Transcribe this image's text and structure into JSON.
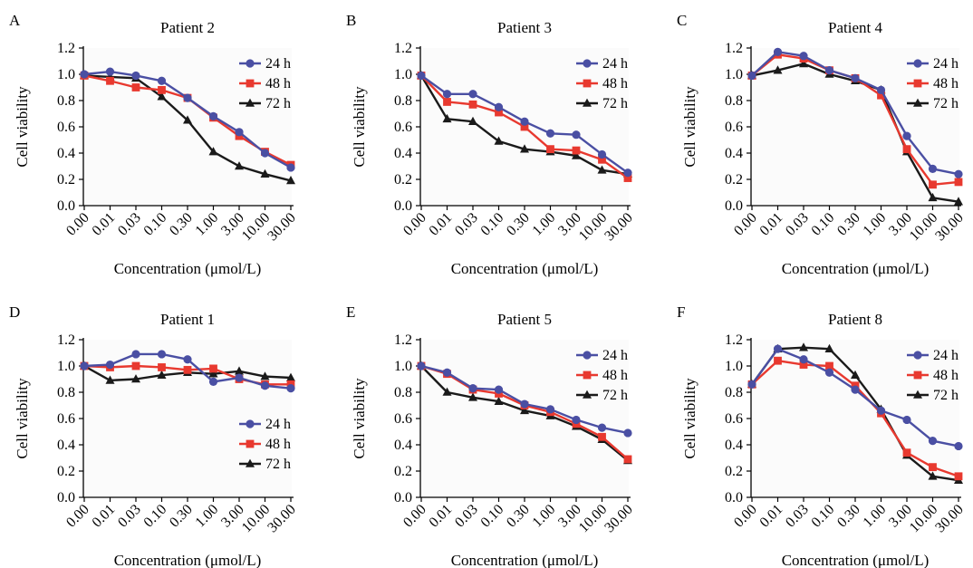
{
  "figure": {
    "panels": [
      "A",
      "B",
      "C",
      "D",
      "E",
      "F"
    ]
  },
  "chart_data": [
    {
      "panel": "A",
      "type": "line",
      "title": "Patient 2",
      "xlabel": "Concentration (μmol/L)",
      "ylabel": "Cell viability",
      "categories": [
        "0.00",
        "0.01",
        "0.03",
        "0.10",
        "0.30",
        "1.00",
        "3.00",
        "10.00",
        "30.00"
      ],
      "ylim": [
        0,
        1.2
      ],
      "yticks": [
        "0.0",
        "0.2",
        "0.4",
        "0.6",
        "0.8",
        "1.0",
        "1.2"
      ],
      "legend_position": "top-right",
      "series": [
        {
          "name": "24 h",
          "color": "#4a4fa3",
          "marker": "circle",
          "values": [
            1.0,
            1.02,
            0.99,
            0.95,
            0.82,
            0.68,
            0.56,
            0.4,
            0.29
          ]
        },
        {
          "name": "48 h",
          "color": "#e8392f",
          "marker": "square",
          "values": [
            0.99,
            0.95,
            0.9,
            0.88,
            0.82,
            0.67,
            0.53,
            0.41,
            0.31
          ]
        },
        {
          "name": "72 h",
          "color": "#1a1a1a",
          "marker": "triangle",
          "values": [
            0.99,
            0.98,
            0.97,
            0.83,
            0.65,
            0.41,
            0.3,
            0.24,
            0.19
          ]
        }
      ]
    },
    {
      "panel": "B",
      "type": "line",
      "title": "Patient 3",
      "xlabel": "Concentration (μmol/L)",
      "ylabel": "Cell viability",
      "categories": [
        "0.00",
        "0.01",
        "0.03",
        "0.10",
        "0.30",
        "1.00",
        "3.00",
        "10.00",
        "30.00"
      ],
      "ylim": [
        0,
        1.2
      ],
      "yticks": [
        "0.0",
        "0.2",
        "0.4",
        "0.6",
        "0.8",
        "1.0",
        "1.2"
      ],
      "legend_position": "top-right",
      "series": [
        {
          "name": "24 h",
          "color": "#4a4fa3",
          "marker": "circle",
          "values": [
            0.99,
            0.85,
            0.85,
            0.75,
            0.64,
            0.55,
            0.54,
            0.39,
            0.25
          ]
        },
        {
          "name": "48 h",
          "color": "#e8392f",
          "marker": "square",
          "values": [
            0.99,
            0.79,
            0.77,
            0.71,
            0.6,
            0.43,
            0.42,
            0.35,
            0.21
          ]
        },
        {
          "name": "72 h",
          "color": "#1a1a1a",
          "marker": "triangle",
          "values": [
            0.99,
            0.66,
            0.64,
            0.49,
            0.43,
            0.41,
            0.38,
            0.27,
            0.24
          ]
        }
      ]
    },
    {
      "panel": "C",
      "type": "line",
      "title": "Patient 4",
      "xlabel": "Concentration (μmol/L)",
      "ylabel": "Cell viability",
      "categories": [
        "0.00",
        "0.01",
        "0.03",
        "0.10",
        "0.30",
        "1.00",
        "3.00",
        "10.00",
        "30.00"
      ],
      "ylim": [
        0,
        1.2
      ],
      "yticks": [
        "0.0",
        "0.2",
        "0.4",
        "0.6",
        "0.8",
        "1.0",
        "1.2"
      ],
      "legend_position": "top-right",
      "series": [
        {
          "name": "24 h",
          "color": "#4a4fa3",
          "marker": "circle",
          "values": [
            0.99,
            1.17,
            1.14,
            1.03,
            0.97,
            0.88,
            0.53,
            0.28,
            0.24
          ]
        },
        {
          "name": "48 h",
          "color": "#e8392f",
          "marker": "square",
          "values": [
            0.99,
            1.15,
            1.12,
            1.03,
            0.97,
            0.84,
            0.43,
            0.16,
            0.18
          ]
        },
        {
          "name": "72 h",
          "color": "#1a1a1a",
          "marker": "triangle",
          "values": [
            0.99,
            1.03,
            1.08,
            1.0,
            0.95,
            0.88,
            0.41,
            0.06,
            0.03
          ]
        }
      ]
    },
    {
      "panel": "D",
      "type": "line",
      "title": "Patient 1",
      "xlabel": "Concentration (μmol/L)",
      "ylabel": "Cell viability",
      "categories": [
        "0.00",
        "0.01",
        "0.03",
        "0.10",
        "0.30",
        "1.00",
        "3.00",
        "10.00",
        "30.00"
      ],
      "ylim": [
        0,
        1.2
      ],
      "yticks": [
        "0.0",
        "0.2",
        "0.4",
        "0.6",
        "0.8",
        "1.0",
        "1.2"
      ],
      "legend_position": "bottom-right",
      "series": [
        {
          "name": "24 h",
          "color": "#4a4fa3",
          "marker": "circle",
          "values": [
            1.0,
            1.01,
            1.09,
            1.09,
            1.05,
            0.88,
            0.91,
            0.85,
            0.83
          ]
        },
        {
          "name": "48 h",
          "color": "#e8392f",
          "marker": "square",
          "values": [
            1.0,
            0.99,
            1.0,
            0.99,
            0.97,
            0.98,
            0.9,
            0.86,
            0.86
          ]
        },
        {
          "name": "72 h",
          "color": "#1a1a1a",
          "marker": "triangle",
          "values": [
            1.0,
            0.89,
            0.9,
            0.93,
            0.95,
            0.94,
            0.96,
            0.92,
            0.91
          ]
        }
      ]
    },
    {
      "panel": "E",
      "type": "line",
      "title": "Patient 5",
      "xlabel": "Concentration (μmol/L)",
      "ylabel": "Cell viability",
      "categories": [
        "0.00",
        "0.01",
        "0.03",
        "0.10",
        "0.30",
        "1.00",
        "3.00",
        "10.00",
        "30.00"
      ],
      "ylim": [
        0,
        1.2
      ],
      "yticks": [
        "0.0",
        "0.2",
        "0.4",
        "0.6",
        "0.8",
        "1.0",
        "1.2"
      ],
      "legend_position": "top-right",
      "series": [
        {
          "name": "24 h",
          "color": "#4a4fa3",
          "marker": "circle",
          "values": [
            1.0,
            0.95,
            0.83,
            0.82,
            0.71,
            0.67,
            0.59,
            0.53,
            0.49
          ]
        },
        {
          "name": "48 h",
          "color": "#e8392f",
          "marker": "square",
          "values": [
            1.0,
            0.94,
            0.82,
            0.79,
            0.7,
            0.65,
            0.56,
            0.46,
            0.29
          ]
        },
        {
          "name": "72 h",
          "color": "#1a1a1a",
          "marker": "triangle",
          "values": [
            1.0,
            0.8,
            0.76,
            0.73,
            0.66,
            0.62,
            0.54,
            0.44,
            0.28
          ]
        }
      ]
    },
    {
      "panel": "F",
      "type": "line",
      "title": "Patient 8",
      "xlabel": "Concentration (μmol/L)",
      "ylabel": "Cell viability",
      "categories": [
        "0.00",
        "0.01",
        "0.03",
        "0.10",
        "0.30",
        "1.00",
        "3.00",
        "10.00",
        "30.00"
      ],
      "ylim": [
        0,
        1.2
      ],
      "yticks": [
        "0.0",
        "0.2",
        "0.4",
        "0.6",
        "0.8",
        "1.0",
        "1.2"
      ],
      "legend_position": "top-right",
      "series": [
        {
          "name": "24 h",
          "color": "#4a4fa3",
          "marker": "circle",
          "values": [
            0.86,
            1.13,
            1.05,
            0.95,
            0.82,
            0.66,
            0.59,
            0.43,
            0.39
          ]
        },
        {
          "name": "48 h",
          "color": "#e8392f",
          "marker": "square",
          "values": [
            0.86,
            1.04,
            1.01,
            1.0,
            0.85,
            0.64,
            0.34,
            0.23,
            0.16
          ]
        },
        {
          "name": "72 h",
          "color": "#1a1a1a",
          "marker": "triangle",
          "values": [
            0.86,
            1.13,
            1.14,
            1.13,
            0.93,
            0.67,
            0.32,
            0.16,
            0.13
          ]
        }
      ]
    }
  ]
}
